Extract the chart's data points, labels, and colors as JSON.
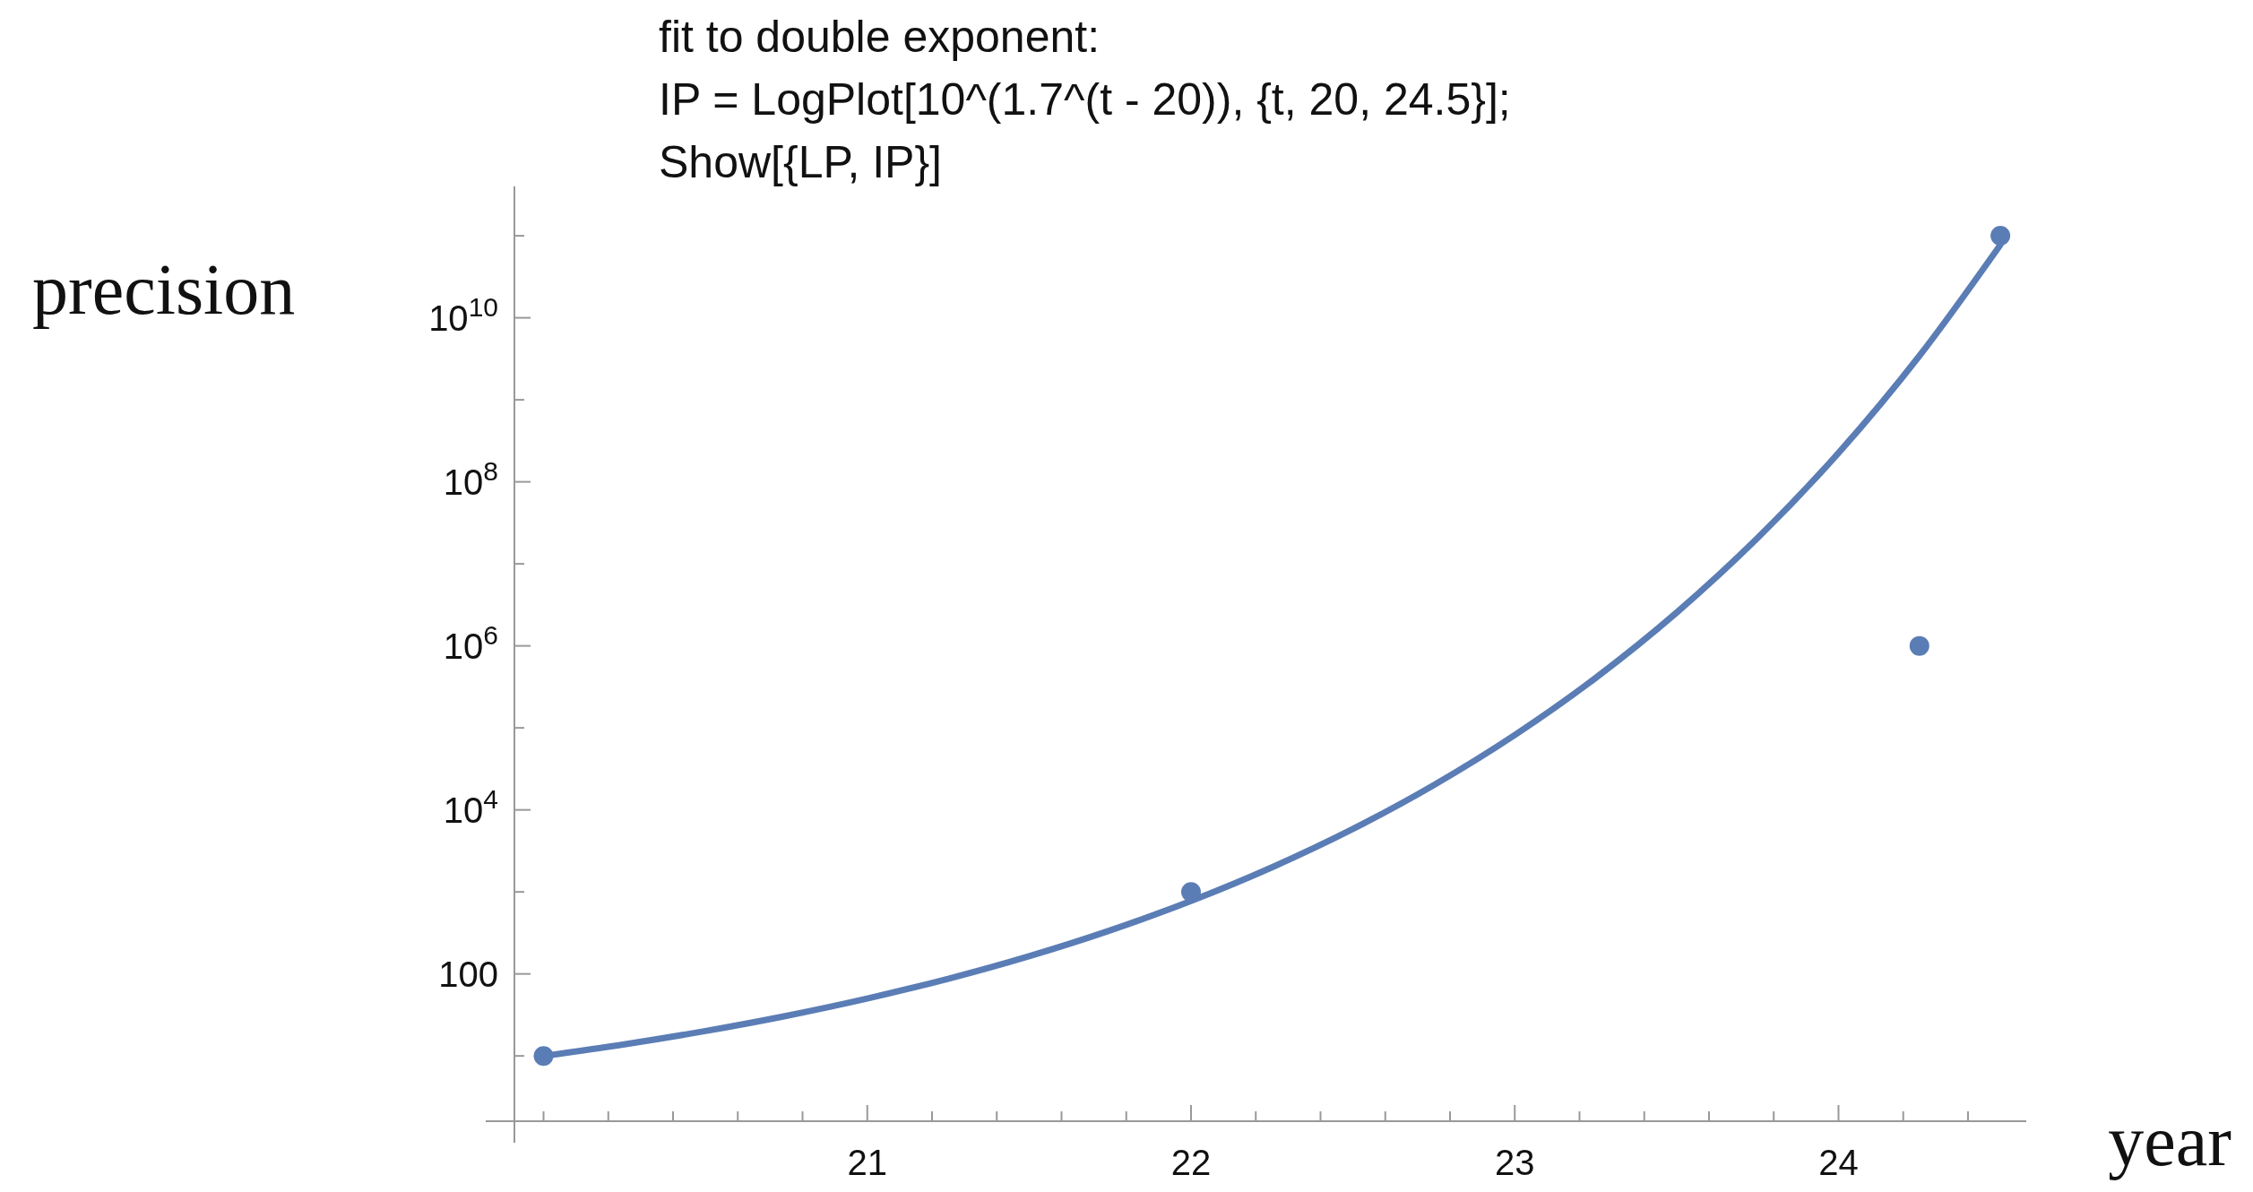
{
  "chart_data": {
    "type": "scatter",
    "title": "fit to double exponent:",
    "annotations": [
      "IP = LogPlot[10^(1.7^(t - 20)), {t, 20, 24.5}];",
      "Show[{LP, IP}]"
    ],
    "xlabel": "year",
    "ylabel": "precision",
    "log": "y",
    "grid": false,
    "xlim": [
      19.91,
      24.58
    ],
    "ylim": [
      1.6,
      400000000000.0
    ],
    "xticks": [
      {
        "value": 20,
        "label": null
      },
      {
        "value": 20.2,
        "label": null
      },
      {
        "value": 20.4,
        "label": null
      },
      {
        "value": 20.6,
        "label": null
      },
      {
        "value": 20.8,
        "label": null
      },
      21,
      {
        "value": 21.2,
        "label": null
      },
      {
        "value": 21.4,
        "label": null
      },
      {
        "value": 21.6,
        "label": null
      },
      {
        "value": 21.8,
        "label": null
      },
      22,
      {
        "value": 22.2,
        "label": null
      },
      {
        "value": 22.4,
        "label": null
      },
      {
        "value": 22.6,
        "label": null
      },
      {
        "value": 22.8,
        "label": null
      },
      23,
      {
        "value": 23.2,
        "label": null
      },
      {
        "value": 23.4,
        "label": null
      },
      {
        "value": 23.6,
        "label": null
      },
      {
        "value": 23.8,
        "label": null
      },
      24,
      {
        "value": 24.2,
        "label": null
      },
      {
        "value": 24.4,
        "label": null
      }
    ],
    "yticks": [
      {
        "value": 10,
        "label": null
      },
      100,
      {
        "value": 1000,
        "label": null
      },
      {
        "value": 10000,
        "label": "10$^{4}$"
      },
      {
        "value": 100000,
        "label": null
      },
      {
        "value": 1000000,
        "label": "10$^{6}$"
      },
      {
        "value": 10000000,
        "label": null
      },
      {
        "value": 100000000,
        "label": "10$^{8}$"
      },
      {
        "value": 1000000000,
        "label": null
      },
      {
        "value": 10000000000,
        "label": "10$^{10}$"
      },
      {
        "value": 100000000000,
        "label": null
      }
    ],
    "series": [
      {
        "type": "line",
        "marker": "none",
        "line_style": "solid",
        "color": "#5b7db5",
        "x": [
          20,
          20.25,
          20.5,
          20.75,
          21,
          21.25,
          21.5,
          21.75,
          22,
          22.25,
          22.5,
          22.75,
          23,
          23.25,
          23.5,
          23.75,
          24,
          24.25,
          24.5
        ],
        "values": [
          10,
          13.87,
          20.13,
          30.8,
          50.1,
          87.3,
          164.6,
          339.6,
          776,
          1995,
          5860,
          20080,
          81850,
          407000,
          2545000,
          20630000,
          224900000,
          3440000000,
          77600000000
        ]
      },
      {
        "type": "scatter",
        "marker": "circle",
        "color": "#5b7db5",
        "x": [
          20,
          22,
          24.25,
          24.5
        ],
        "values": [
          10,
          1000,
          1000000,
          100000000000
        ]
      }
    ]
  }
}
